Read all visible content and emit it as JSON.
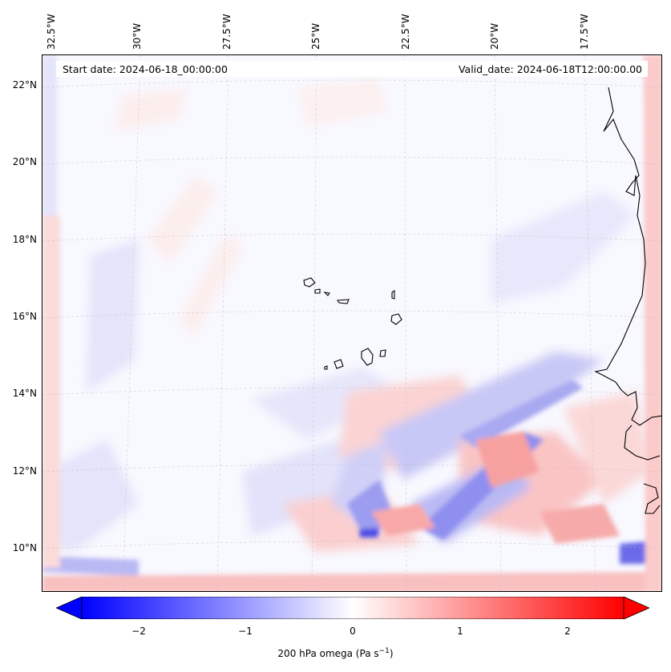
{
  "map": {
    "projection": "regional lat-lon",
    "lon_labels": [
      "32.5°W",
      "30°W",
      "27.5°W",
      "25°W",
      "22.5°W",
      "20°W",
      "17.5°W"
    ],
    "lat_labels": [
      "22°N",
      "20°N",
      "18°N",
      "16°N",
      "14°N",
      "12°N",
      "10°N"
    ],
    "start_date_text": "Start date: 2024-06-18_00:00:00",
    "valid_date_text": "Valid_date: 2024-06-18T12:00:00.00",
    "field": "200 hPa omega",
    "gridlines": true,
    "colors": {
      "negative": "#0000ff",
      "zero": "#ffffff",
      "positive": "#ff0000",
      "coastline": "#000000"
    }
  },
  "colorbar": {
    "ticks": [
      "−2",
      "−1",
      "0",
      "1",
      "2"
    ],
    "tick_values": [
      -2,
      -1,
      0,
      1,
      2
    ],
    "range": [
      -2.5,
      2.5
    ],
    "label_main": "200 hPa omega (Pa s",
    "label_exp": "−1",
    "label_close": ")",
    "extend": "both",
    "cmap": "bwr"
  }
}
